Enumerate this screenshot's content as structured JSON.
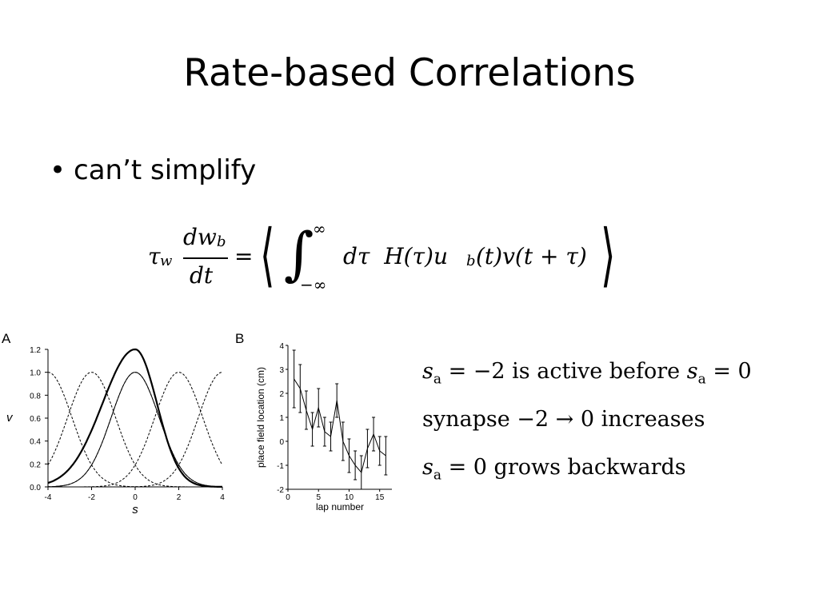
{
  "slide": {
    "title": "Rate-based Correlations",
    "bullet": "can’t simplify",
    "equation": {
      "lhs_tau": "τ",
      "lhs_sub": "w",
      "numerator": "dw",
      "numerator_sub": "b",
      "denominator": "dt",
      "equals": "=",
      "integral_upper": "∞",
      "integral_lower": "−∞",
      "integrand": "dτ  H(τ)u",
      "integrand_sub": "b",
      "integrand_rest": "(t)v(t + τ)"
    },
    "notes": [
      {
        "pre": "s",
        "sub": "a",
        "mid": " = −2 is active before ",
        "pre2": "s",
        "sub2": "a",
        "post": " = 0"
      },
      {
        "text": "synapse −2 → 0 increases"
      },
      {
        "pre": "s",
        "sub": "a",
        "post": " = 0 grows backwards"
      }
    ]
  },
  "chart_data": [
    {
      "type": "line",
      "panel_label": "A",
      "xlabel": "s",
      "ylabel": "v",
      "xlim": [
        -4,
        4
      ],
      "ylim": [
        0,
        1.2
      ],
      "x_ticks": [
        "-4",
        "-2",
        "0",
        "2",
        "4"
      ],
      "y_ticks": [
        "0.0",
        "0.2",
        "0.4",
        "0.6",
        "0.8",
        "1.0",
        "1.2"
      ],
      "series": [
        {
          "style": "dashed",
          "shape": "gaussian",
          "center": -4,
          "peak": 1.0,
          "width": 1.1
        },
        {
          "style": "dashed",
          "shape": "gaussian",
          "center": -2,
          "peak": 1.0,
          "width": 1.1
        },
        {
          "style": "dashed",
          "shape": "gaussian",
          "center": 0,
          "peak": 1.0,
          "width": 1.1
        },
        {
          "style": "dashed",
          "shape": "gaussian",
          "center": 2,
          "peak": 1.0,
          "width": 1.1
        },
        {
          "style": "dashed",
          "shape": "gaussian",
          "center": 4,
          "peak": 1.0,
          "width": 1.1
        },
        {
          "style": "thin",
          "shape": "gaussian",
          "center": 0,
          "peak": 1.0,
          "width": 1.1
        },
        {
          "style": "thick",
          "shape": "skewed",
          "center": 0,
          "peak": 1.2,
          "width_left": 1.5,
          "width_right": 1.0
        }
      ]
    },
    {
      "type": "line",
      "panel_label": "B",
      "xlabel": "lap number",
      "ylabel": "place field  location (cm)",
      "xlim": [
        0,
        17
      ],
      "ylim": [
        -2,
        4
      ],
      "x_ticks": [
        "0",
        "5",
        "10",
        "15"
      ],
      "y_ticks": [
        "-2",
        "-1",
        "0",
        "1",
        "2",
        "3",
        "4"
      ],
      "series": [
        {
          "x": [
            1,
            2,
            3,
            4,
            5,
            6,
            7,
            8,
            9,
            10,
            11,
            12,
            13,
            14,
            15,
            16
          ],
          "y": [
            2.6,
            2.2,
            1.3,
            0.5,
            1.4,
            0.4,
            0.2,
            1.7,
            0.0,
            -0.6,
            -1.0,
            -1.3,
            -0.3,
            0.3,
            -0.4,
            -0.6
          ],
          "err": [
            1.2,
            1.0,
            0.8,
            0.7,
            0.8,
            0.6,
            0.6,
            0.7,
            0.8,
            0.7,
            0.6,
            0.7,
            0.8,
            0.7,
            0.6,
            0.8
          ]
        }
      ]
    }
  ]
}
